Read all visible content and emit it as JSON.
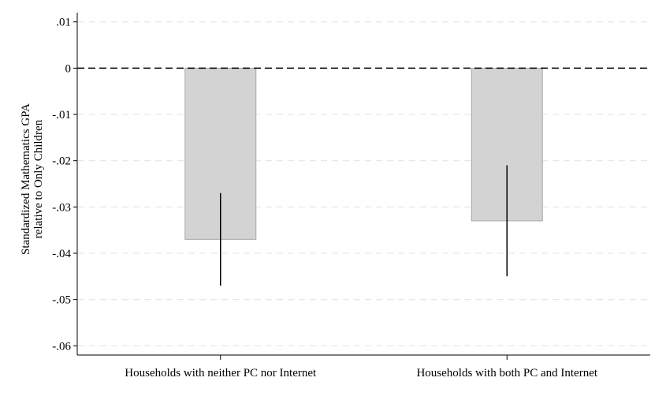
{
  "chart_data": {
    "type": "bar",
    "title": "",
    "xlabel": "",
    "ylabel_lines": [
      "Standardized Mathematics GPA",
      "relative to Only Children"
    ],
    "categories": [
      "Households with neither PC nor Internet",
      "Households with both PC and Internet"
    ],
    "values": [
      -0.037,
      -0.033
    ],
    "ci_low": [
      -0.047,
      -0.045
    ],
    "ci_high": [
      -0.027,
      -0.021
    ],
    "ylim": [
      -0.062,
      0.012
    ],
    "yticks": [
      0.01,
      0,
      -0.01,
      -0.02,
      -0.03,
      -0.04,
      -0.05,
      -0.06
    ],
    "ytick_labels": [
      ".01",
      "0",
      "-.01",
      "-.02",
      "-.03",
      "-.04",
      "-.05",
      "-.06"
    ],
    "reference_line": 0,
    "grid": true,
    "colors": {
      "bar_fill": "#d3d3d3",
      "bar_stroke": "#a8a8a8",
      "grid": "#e6e6e6",
      "errorbar": "#000000",
      "reference": "#000000"
    }
  }
}
